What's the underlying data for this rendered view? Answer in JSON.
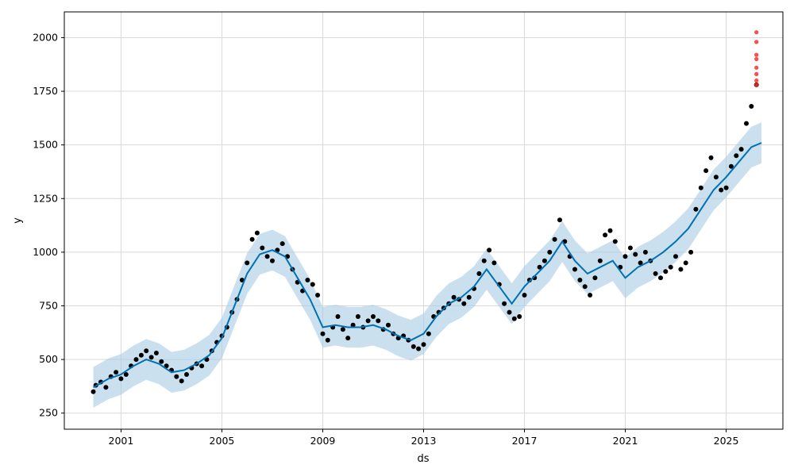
{
  "chart_data": {
    "type": "scatter",
    "title": "",
    "xlabel": "ds",
    "ylabel": "y",
    "x_range": [
      1998.75,
      2027.25
    ],
    "ylim": [
      175,
      2120
    ],
    "grid": true,
    "x_ticks": [
      {
        "value": 2001,
        "label": "2001"
      },
      {
        "value": 2005,
        "label": "2005"
      },
      {
        "value": 2009,
        "label": "2009"
      },
      {
        "value": 2013,
        "label": "2013"
      },
      {
        "value": 2017,
        "label": "2017"
      },
      {
        "value": 2021,
        "label": "2021"
      },
      {
        "value": 2025,
        "label": "2025"
      }
    ],
    "y_ticks": [
      {
        "value": 250,
        "label": "250"
      },
      {
        "value": 500,
        "label": "500"
      },
      {
        "value": 750,
        "label": "750"
      },
      {
        "value": 1000,
        "label": "1000"
      },
      {
        "value": 1250,
        "label": "1250"
      },
      {
        "value": 1500,
        "label": "1500"
      },
      {
        "value": 1750,
        "label": "1750"
      },
      {
        "value": 2000,
        "label": "2000"
      }
    ],
    "colors": {
      "observed": "#000000",
      "forecast_line": "#0072B2",
      "uncertainty_band": "#a9cce3",
      "outliers": "#ff2a2a"
    },
    "series": [
      {
        "kind": "observed",
        "points": [
          [
            1999.9,
            350
          ],
          [
            2000.0,
            380
          ],
          [
            2000.2,
            395
          ],
          [
            2000.4,
            370
          ],
          [
            2000.6,
            420
          ],
          [
            2000.8,
            440
          ],
          [
            2001.0,
            410
          ],
          [
            2001.2,
            430
          ],
          [
            2001.4,
            470
          ],
          [
            2001.6,
            500
          ],
          [
            2001.8,
            520
          ],
          [
            2002.0,
            540
          ],
          [
            2002.2,
            510
          ],
          [
            2002.4,
            530
          ],
          [
            2002.6,
            490
          ],
          [
            2002.8,
            470
          ],
          [
            2003.0,
            450
          ],
          [
            2003.2,
            420
          ],
          [
            2003.4,
            400
          ],
          [
            2003.6,
            430
          ],
          [
            2003.8,
            460
          ],
          [
            2004.0,
            480
          ],
          [
            2004.2,
            470
          ],
          [
            2004.4,
            500
          ],
          [
            2004.6,
            540
          ],
          [
            2004.8,
            580
          ],
          [
            2005.0,
            610
          ],
          [
            2005.2,
            650
          ],
          [
            2005.4,
            720
          ],
          [
            2005.6,
            780
          ],
          [
            2005.8,
            870
          ],
          [
            2006.0,
            950
          ],
          [
            2006.2,
            1060
          ],
          [
            2006.4,
            1090
          ],
          [
            2006.6,
            1020
          ],
          [
            2006.8,
            980
          ],
          [
            2007.0,
            960
          ],
          [
            2007.2,
            1010
          ],
          [
            2007.4,
            1040
          ],
          [
            2007.6,
            980
          ],
          [
            2007.8,
            920
          ],
          [
            2008.0,
            860
          ],
          [
            2008.2,
            820
          ],
          [
            2008.4,
            870
          ],
          [
            2008.6,
            850
          ],
          [
            2008.8,
            800
          ],
          [
            2009.0,
            620
          ],
          [
            2009.2,
            590
          ],
          [
            2009.4,
            650
          ],
          [
            2009.6,
            700
          ],
          [
            2009.8,
            640
          ],
          [
            2010.0,
            600
          ],
          [
            2010.2,
            660
          ],
          [
            2010.4,
            700
          ],
          [
            2010.6,
            650
          ],
          [
            2010.8,
            680
          ],
          [
            2011.0,
            700
          ],
          [
            2011.2,
            680
          ],
          [
            2011.4,
            640
          ],
          [
            2011.6,
            660
          ],
          [
            2011.8,
            620
          ],
          [
            2012.0,
            600
          ],
          [
            2012.2,
            610
          ],
          [
            2012.4,
            590
          ],
          [
            2012.6,
            560
          ],
          [
            2012.8,
            550
          ],
          [
            2013.0,
            570
          ],
          [
            2013.2,
            620
          ],
          [
            2013.4,
            700
          ],
          [
            2013.6,
            720
          ],
          [
            2013.8,
            740
          ],
          [
            2014.0,
            760
          ],
          [
            2014.2,
            790
          ],
          [
            2014.4,
            780
          ],
          [
            2014.6,
            760
          ],
          [
            2014.8,
            790
          ],
          [
            2015.0,
            830
          ],
          [
            2015.2,
            900
          ],
          [
            2015.4,
            960
          ],
          [
            2015.6,
            1010
          ],
          [
            2015.8,
            950
          ],
          [
            2016.0,
            850
          ],
          [
            2016.2,
            760
          ],
          [
            2016.4,
            720
          ],
          [
            2016.6,
            690
          ],
          [
            2016.8,
            700
          ],
          [
            2017.0,
            800
          ],
          [
            2017.2,
            870
          ],
          [
            2017.4,
            880
          ],
          [
            2017.6,
            930
          ],
          [
            2017.8,
            960
          ],
          [
            2018.0,
            1000
          ],
          [
            2018.2,
            1060
          ],
          [
            2018.4,
            1150
          ],
          [
            2018.6,
            1050
          ],
          [
            2018.8,
            980
          ],
          [
            2019.0,
            920
          ],
          [
            2019.2,
            870
          ],
          [
            2019.4,
            840
          ],
          [
            2019.6,
            800
          ],
          [
            2019.8,
            880
          ],
          [
            2020.0,
            960
          ],
          [
            2020.2,
            1080
          ],
          [
            2020.4,
            1100
          ],
          [
            2020.6,
            1050
          ],
          [
            2020.8,
            930
          ],
          [
            2021.0,
            980
          ],
          [
            2021.2,
            1020
          ],
          [
            2021.4,
            990
          ],
          [
            2021.6,
            950
          ],
          [
            2021.8,
            1000
          ],
          [
            2022.0,
            960
          ],
          [
            2022.2,
            900
          ],
          [
            2022.4,
            880
          ],
          [
            2022.6,
            910
          ],
          [
            2022.8,
            930
          ],
          [
            2023.0,
            980
          ],
          [
            2023.2,
            920
          ],
          [
            2023.4,
            950
          ],
          [
            2023.6,
            1000
          ],
          [
            2023.8,
            1200
          ],
          [
            2024.0,
            1300
          ],
          [
            2024.2,
            1380
          ],
          [
            2024.4,
            1440
          ],
          [
            2024.6,
            1350
          ],
          [
            2024.8,
            1290
          ],
          [
            2025.0,
            1300
          ],
          [
            2025.2,
            1400
          ],
          [
            2025.4,
            1450
          ],
          [
            2025.6,
            1480
          ],
          [
            2025.8,
            1600
          ],
          [
            2026.0,
            1680
          ],
          [
            2026.2,
            1780
          ]
        ]
      },
      {
        "kind": "forecast",
        "points": [
          [
            1999.9,
            370
          ],
          [
            2000.5,
            410
          ],
          [
            2001.0,
            430
          ],
          [
            2001.5,
            470
          ],
          [
            2002.0,
            500
          ],
          [
            2002.5,
            480
          ],
          [
            2003.0,
            440
          ],
          [
            2003.5,
            450
          ],
          [
            2004.0,
            480
          ],
          [
            2004.5,
            520
          ],
          [
            2005.0,
            600
          ],
          [
            2005.5,
            750
          ],
          [
            2006.0,
            900
          ],
          [
            2006.5,
            990
          ],
          [
            2007.0,
            1010
          ],
          [
            2007.5,
            980
          ],
          [
            2008.0,
            880
          ],
          [
            2008.5,
            780
          ],
          [
            2009.0,
            650
          ],
          [
            2009.5,
            660
          ],
          [
            2010.0,
            650
          ],
          [
            2010.5,
            650
          ],
          [
            2011.0,
            660
          ],
          [
            2011.5,
            640
          ],
          [
            2012.0,
            610
          ],
          [
            2012.5,
            590
          ],
          [
            2013.0,
            620
          ],
          [
            2013.5,
            700
          ],
          [
            2014.0,
            760
          ],
          [
            2014.5,
            790
          ],
          [
            2015.0,
            840
          ],
          [
            2015.5,
            920
          ],
          [
            2016.0,
            840
          ],
          [
            2016.5,
            760
          ],
          [
            2017.0,
            840
          ],
          [
            2017.5,
            900
          ],
          [
            2018.0,
            960
          ],
          [
            2018.5,
            1050
          ],
          [
            2019.0,
            960
          ],
          [
            2019.5,
            900
          ],
          [
            2020.0,
            930
          ],
          [
            2020.5,
            960
          ],
          [
            2021.0,
            880
          ],
          [
            2021.5,
            930
          ],
          [
            2022.0,
            960
          ],
          [
            2022.5,
            1000
          ],
          [
            2023.0,
            1050
          ],
          [
            2023.5,
            1110
          ],
          [
            2024.0,
            1200
          ],
          [
            2024.5,
            1290
          ],
          [
            2025.0,
            1350
          ],
          [
            2025.5,
            1420
          ],
          [
            2026.0,
            1490
          ],
          [
            2026.4,
            1510
          ]
        ]
      },
      {
        "kind": "outliers",
        "points": [
          [
            2026.2,
            1780
          ],
          [
            2026.2,
            1800
          ],
          [
            2026.2,
            1830
          ],
          [
            2026.2,
            1860
          ],
          [
            2026.2,
            1900
          ],
          [
            2026.2,
            1920
          ],
          [
            2026.2,
            1980
          ],
          [
            2026.2,
            2025
          ]
        ]
      }
    ],
    "band_halfwidth": 95
  }
}
